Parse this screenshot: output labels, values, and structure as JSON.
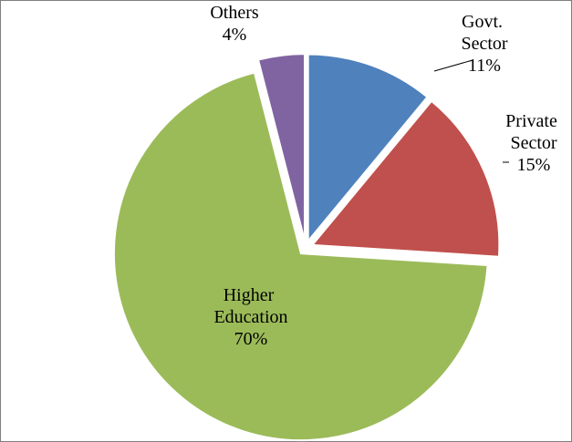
{
  "chart_data": {
    "type": "pie",
    "categories": [
      "Govt. Sector",
      "Private Sector",
      "Higher Education",
      "Others"
    ],
    "values": [
      11,
      15,
      70,
      4
    ],
    "value_labels": [
      "11%",
      "15%",
      "70%",
      "4%"
    ],
    "colors": [
      "#4f81bd",
      "#c0504d",
      "#9bbb59",
      "#8064a2"
    ]
  }
}
